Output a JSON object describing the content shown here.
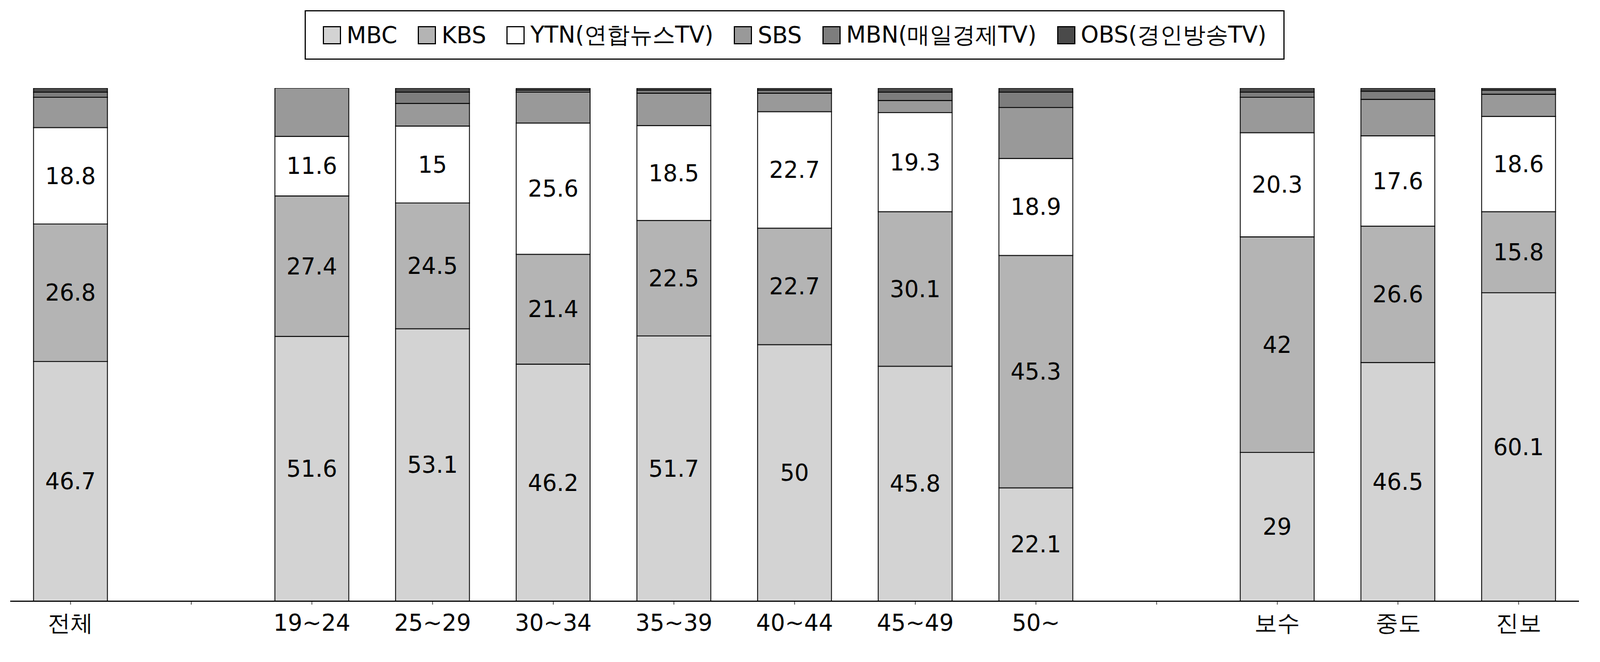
{
  "chart_data": {
    "type": "bar",
    "stacked": true,
    "legend": "top",
    "tick_labels": "x",
    "grid": false,
    "categories": [
      "전체",
      null,
      "19~24",
      "25~29",
      "30~34",
      "35~39",
      "40~44",
      "45~49",
      "50~",
      null,
      "보수",
      "중도",
      "진보"
    ],
    "ylim": [
      0,
      100
    ],
    "series": [
      {
        "name": "MBC",
        "color": "#d3d3d3",
        "data_labels": true,
        "values": [
          46.7,
          null,
          51.6,
          53.1,
          46.2,
          51.7,
          50.0,
          45.8,
          22.1,
          null,
          29.0,
          46.5,
          60.1
        ]
      },
      {
        "name": "KBS",
        "color": "#b4b4b4",
        "data_labels": true,
        "values": [
          26.8,
          null,
          27.4,
          24.5,
          21.4,
          22.5,
          22.7,
          30.1,
          45.3,
          null,
          42.0,
          26.6,
          15.8
        ]
      },
      {
        "name": "YTN(연합뉴스TV)",
        "color": "#ffffff",
        "data_labels": true,
        "values": [
          18.8,
          null,
          11.6,
          15.0,
          25.6,
          18.5,
          22.7,
          19.3,
          18.9,
          null,
          20.3,
          17.6,
          18.6
        ]
      },
      {
        "name": "SBS",
        "color": "#999999",
        "data_labels": false,
        "values": [
          5.9,
          null,
          9.4,
          4.4,
          6.0,
          6.3,
          3.6,
          2.4,
          9.9,
          null,
          6.9,
          7.1,
          4.3
        ]
      },
      {
        "name": "MBN(매일경제TV)",
        "color": "#7d7d7d",
        "data_labels": false,
        "values": [
          1.0,
          null,
          0,
          2.2,
          0.4,
          0.6,
          0.6,
          1.6,
          3.0,
          null,
          1.0,
          1.6,
          0.8
        ]
      },
      {
        "name": "OBS(경인방송TV)",
        "color": "#4a4a4a",
        "data_labels": false,
        "values": [
          0.8,
          null,
          0,
          0.8,
          0.4,
          0.4,
          0.4,
          0.8,
          0.8,
          null,
          0.8,
          0.6,
          0.4
        ]
      }
    ]
  }
}
